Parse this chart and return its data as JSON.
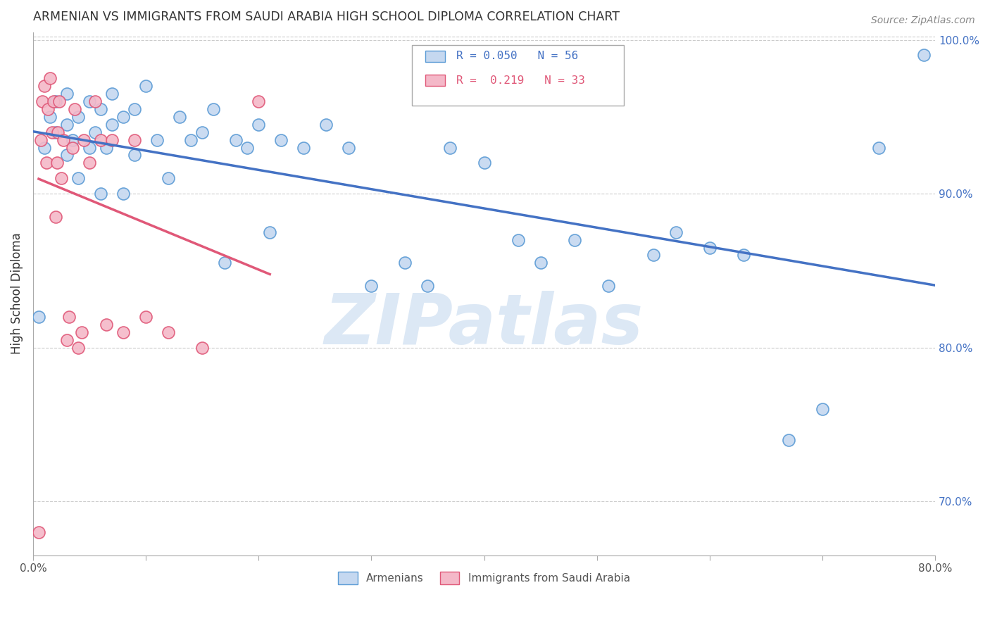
{
  "title": "ARMENIAN VS IMMIGRANTS FROM SAUDI ARABIA HIGH SCHOOL DIPLOMA CORRELATION CHART",
  "source_text": "Source: ZipAtlas.com",
  "ylabel": "High School Diploma",
  "legend_labels": [
    "Armenians",
    "Immigrants from Saudi Arabia"
  ],
  "r_armenian": 0.05,
  "n_armenian": 56,
  "r_saudi": 0.219,
  "n_saudi": 33,
  "xlim": [
    0.0,
    0.8
  ],
  "ylim": [
    0.665,
    1.005
  ],
  "xticks": [
    0.0,
    0.1,
    0.2,
    0.3,
    0.4,
    0.5,
    0.6,
    0.7,
    0.8
  ],
  "yticks_right": [
    0.7,
    0.8,
    0.9,
    1.0
  ],
  "ytick_labels_right": [
    "70.0%",
    "80.0%",
    "90.0%",
    "100.0%"
  ],
  "color_armenian_fill": "#c5d8f0",
  "color_armenian_edge": "#5b9bd5",
  "color_armenian_line": "#4472c4",
  "color_saudi_fill": "#f4b8c8",
  "color_saudi_edge": "#e05878",
  "color_saudi_line": "#e05878",
  "background_color": "#ffffff",
  "armenian_x": [
    0.005,
    0.01,
    0.015,
    0.02,
    0.02,
    0.03,
    0.03,
    0.03,
    0.035,
    0.04,
    0.04,
    0.05,
    0.05,
    0.055,
    0.06,
    0.06,
    0.065,
    0.07,
    0.07,
    0.08,
    0.08,
    0.09,
    0.09,
    0.1,
    0.11,
    0.12,
    0.13,
    0.14,
    0.15,
    0.16,
    0.17,
    0.18,
    0.19,
    0.2,
    0.21,
    0.22,
    0.24,
    0.26,
    0.28,
    0.3,
    0.33,
    0.35,
    0.37,
    0.4,
    0.43,
    0.45,
    0.48,
    0.51,
    0.55,
    0.57,
    0.6,
    0.63,
    0.67,
    0.7,
    0.75,
    0.79
  ],
  "armenian_y": [
    0.82,
    0.93,
    0.95,
    0.94,
    0.96,
    0.925,
    0.945,
    0.965,
    0.935,
    0.91,
    0.95,
    0.93,
    0.96,
    0.94,
    0.9,
    0.955,
    0.93,
    0.945,
    0.965,
    0.9,
    0.95,
    0.925,
    0.955,
    0.97,
    0.935,
    0.91,
    0.95,
    0.935,
    0.94,
    0.955,
    0.855,
    0.935,
    0.93,
    0.945,
    0.875,
    0.935,
    0.93,
    0.945,
    0.93,
    0.84,
    0.855,
    0.84,
    0.93,
    0.92,
    0.87,
    0.855,
    0.87,
    0.84,
    0.86,
    0.875,
    0.865,
    0.86,
    0.74,
    0.76,
    0.93,
    0.99
  ],
  "saudi_x": [
    0.005,
    0.007,
    0.008,
    0.01,
    0.012,
    0.013,
    0.015,
    0.017,
    0.018,
    0.02,
    0.021,
    0.022,
    0.023,
    0.025,
    0.027,
    0.03,
    0.032,
    0.035,
    0.037,
    0.04,
    0.043,
    0.045,
    0.05,
    0.055,
    0.06,
    0.065,
    0.07,
    0.08,
    0.09,
    0.1,
    0.12,
    0.15,
    0.2
  ],
  "saudi_y": [
    0.68,
    0.935,
    0.96,
    0.97,
    0.92,
    0.955,
    0.975,
    0.94,
    0.96,
    0.885,
    0.92,
    0.94,
    0.96,
    0.91,
    0.935,
    0.805,
    0.82,
    0.93,
    0.955,
    0.8,
    0.81,
    0.935,
    0.92,
    0.96,
    0.935,
    0.815,
    0.935,
    0.81,
    0.935,
    0.82,
    0.81,
    0.8,
    0.96
  ],
  "watermark_text": "ZIPatlas",
  "watermark_color": "#dce8f5",
  "watermark_fontsize": 72
}
